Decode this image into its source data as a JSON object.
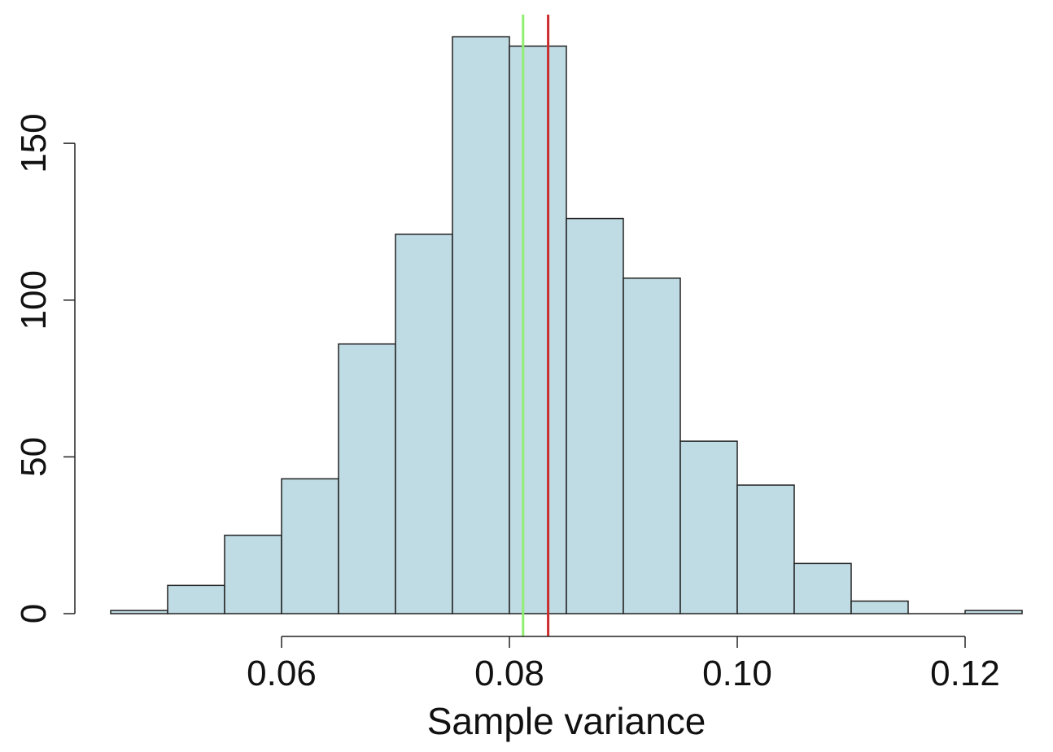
{
  "chart_data": {
    "type": "bar",
    "title": "",
    "xlabel": "Sample variance",
    "ylabel": "",
    "bin_width": 0.005,
    "bins": [
      {
        "x0": 0.045,
        "x1": 0.05,
        "count": 1
      },
      {
        "x0": 0.05,
        "x1": 0.055,
        "count": 9
      },
      {
        "x0": 0.055,
        "x1": 0.06,
        "count": 25
      },
      {
        "x0": 0.06,
        "x1": 0.065,
        "count": 43
      },
      {
        "x0": 0.065,
        "x1": 0.07,
        "count": 86
      },
      {
        "x0": 0.07,
        "x1": 0.075,
        "count": 121
      },
      {
        "x0": 0.075,
        "x1": 0.08,
        "count": 184
      },
      {
        "x0": 0.08,
        "x1": 0.085,
        "count": 181
      },
      {
        "x0": 0.085,
        "x1": 0.09,
        "count": 126
      },
      {
        "x0": 0.09,
        "x1": 0.095,
        "count": 107
      },
      {
        "x0": 0.095,
        "x1": 0.1,
        "count": 55
      },
      {
        "x0": 0.1,
        "x1": 0.105,
        "count": 41
      },
      {
        "x0": 0.105,
        "x1": 0.11,
        "count": 16
      },
      {
        "x0": 0.11,
        "x1": 0.115,
        "count": 4
      },
      {
        "x0": 0.115,
        "x1": 0.12,
        "count": 0
      },
      {
        "x0": 0.12,
        "x1": 0.125,
        "count": 1
      }
    ],
    "xlim": [
      0.045,
      0.125
    ],
    "ylim": [
      0,
      190
    ],
    "x_ticks": [
      0.06,
      0.08,
      0.1,
      0.12
    ],
    "x_tick_labels": [
      "0.06",
      "0.08",
      "0.10",
      "0.12"
    ],
    "y_ticks": [
      0,
      50,
      100,
      150
    ],
    "y_tick_labels": [
      "0",
      "50",
      "100",
      "150"
    ],
    "vlines": [
      {
        "x": 0.0812,
        "color": "#90ee70"
      },
      {
        "x": 0.0834,
        "color": "#cc2b2b"
      }
    ],
    "bar_fill": "#bfdbe4",
    "bar_stroke": "#222222",
    "grid": false,
    "legend": "none"
  }
}
